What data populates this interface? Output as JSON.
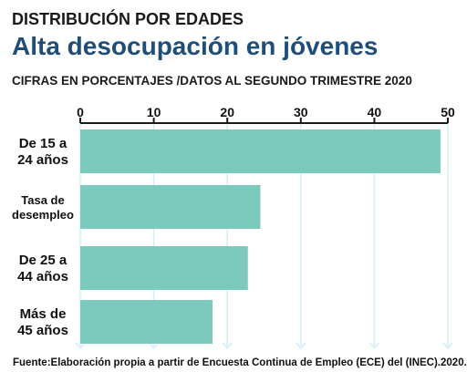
{
  "header": {
    "kicker": "DISTRIBUCIÓN POR EDADES",
    "headline": "Alta desocupación en jóvenes",
    "subtitle": "CIFRAS EN PORCENTAJES /DATOS AL SEGUNDO TRIMESTRE 2020"
  },
  "footer": {
    "source": "Fuente:Elaboración propia a partir de Encuesta Continua de Empleo (ECE) del (INEC).2020."
  },
  "colors": {
    "bar": "#7ccabd",
    "grid": "#d3eef6",
    "axis": "#1a1a1a",
    "headline": "#1f4e79"
  },
  "chart_data": {
    "type": "bar",
    "orientation": "horizontal",
    "categories": [
      [
        "De 15 a",
        "24 años"
      ],
      [
        "Tasa de",
        "desempleo"
      ],
      [
        "De 25 a",
        "44 años"
      ],
      [
        "Más de",
        "45 años"
      ]
    ],
    "values": [
      49,
      24.5,
      22.8,
      18
    ],
    "xlim": [
      0,
      50
    ],
    "xticks": [
      0,
      10,
      20,
      30,
      40,
      50
    ],
    "xaxis_position": "top",
    "grid": true,
    "legend": "none"
  }
}
